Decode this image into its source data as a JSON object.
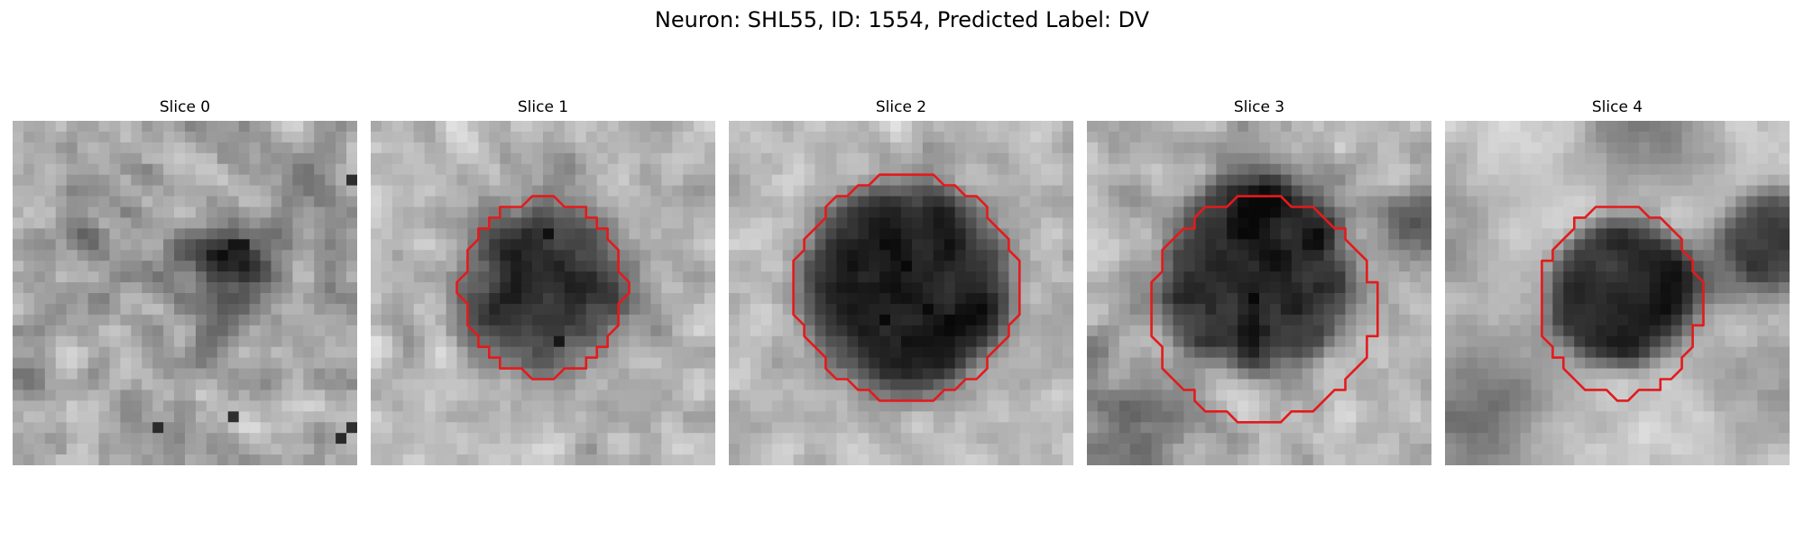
{
  "figure": {
    "title": "Neuron: SHL55, ID: 1554, Predicted Label: DV",
    "contour_color": "#e41a1c"
  },
  "panels": [
    {
      "title": "Slice 0",
      "has_contour": false
    },
    {
      "title": "Slice 1",
      "has_contour": true
    },
    {
      "title": "Slice 2",
      "has_contour": true
    },
    {
      "title": "Slice 3",
      "has_contour": true
    },
    {
      "title": "Slice 4",
      "has_contour": true
    }
  ]
}
